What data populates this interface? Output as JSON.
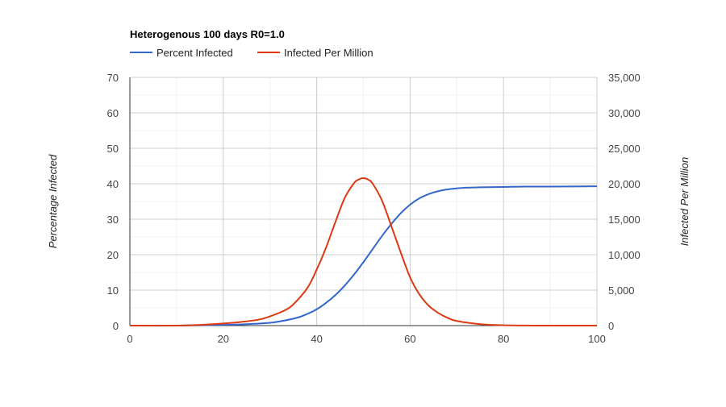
{
  "chart_data": {
    "type": "line",
    "title": "Heterogenous 100 days R0=1.0",
    "xlim": [
      0,
      100
    ],
    "x_ticks": [
      0,
      20,
      40,
      60,
      80,
      100
    ],
    "x_tick_labels": [
      "0",
      "20",
      "40",
      "60",
      "80",
      "100"
    ],
    "y_left": {
      "label": "Percentage Infected",
      "lim": [
        0,
        70
      ],
      "ticks": [
        0,
        10,
        20,
        30,
        40,
        50,
        60,
        70
      ],
      "tick_labels": [
        "0",
        "10",
        "20",
        "30",
        "40",
        "50",
        "60",
        "70"
      ]
    },
    "y_right": {
      "label": "Infected Per Million",
      "lim": [
        0,
        35000
      ],
      "ticks": [
        0,
        5000,
        10000,
        15000,
        20000,
        25000,
        30000,
        35000
      ],
      "tick_labels": [
        "0",
        "5,000",
        "10,000",
        "15,000",
        "20,000",
        "25,000",
        "30,000",
        "35,000"
      ]
    },
    "grid": true,
    "legend_position": "top",
    "series": [
      {
        "name": "Percent Infected",
        "axis": "left",
        "color": "#3366cc",
        "x": [
          0,
          10,
          20,
          25,
          30,
          33,
          36,
          38,
          40,
          42,
          44,
          46,
          48,
          50,
          52,
          54,
          56,
          58,
          60,
          62,
          64,
          66,
          68,
          70,
          72,
          75,
          80,
          85,
          90,
          100
        ],
        "y": [
          0,
          0,
          0.2,
          0.4,
          0.8,
          1.4,
          2.3,
          3.3,
          4.6,
          6.4,
          8.6,
          11.3,
          14.4,
          17.9,
          21.6,
          25.3,
          28.7,
          31.7,
          34.1,
          35.9,
          37.1,
          37.9,
          38.4,
          38.7,
          38.9,
          39.0,
          39.1,
          39.2,
          39.2,
          39.3
        ]
      },
      {
        "name": "Infected Per Million",
        "axis": "right",
        "color": "#dc3912",
        "x": [
          0,
          10,
          15,
          20,
          25,
          28,
          30,
          33,
          35,
          38,
          40,
          42,
          44,
          46,
          48,
          49,
          50,
          51,
          52,
          54,
          56,
          58,
          60,
          62,
          64,
          66,
          68,
          70,
          75,
          80,
          85,
          90,
          100
        ],
        "y": [
          0,
          0,
          100,
          300,
          600,
          900,
          1300,
          2100,
          3000,
          5300,
          7900,
          11000,
          14600,
          18000,
          20100,
          20600,
          20800,
          20600,
          20000,
          17600,
          14000,
          10300,
          6800,
          4400,
          2800,
          1800,
          1100,
          650,
          200,
          60,
          10,
          0,
          0
        ]
      }
    ]
  }
}
